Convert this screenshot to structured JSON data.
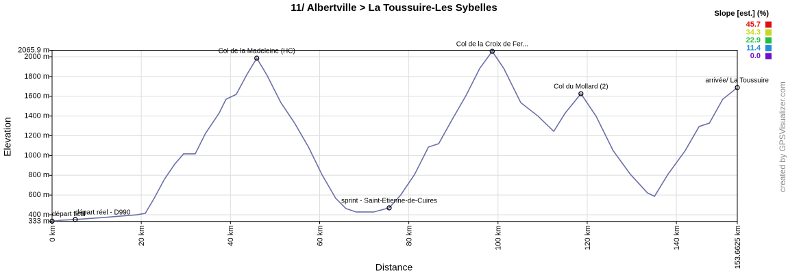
{
  "chart_data": {
    "type": "line",
    "title": "11/ Albertville > La Toussuire-Les Sybelles",
    "x_label": "Distance",
    "y_label": "Elevation",
    "credit": "created by GPSVisualizer.com",
    "x": [
      0,
      2.2,
      5.2,
      11.4,
      19,
      20.9,
      22.9,
      25.2,
      27.5,
      29.5,
      32.1,
      34.4,
      37.5,
      39,
      41.3,
      43.6,
      45.9,
      48.2,
      51.3,
      54.4,
      57.5,
      60.5,
      63.6,
      65.9,
      68.2,
      72.1,
      75.6,
      78.2,
      81.3,
      84.4,
      86.7,
      89.7,
      92.8,
      95.9,
      98.7,
      101.3,
      105.1,
      109,
      112.5,
      115.1,
      118.6,
      122,
      125.8,
      129.7,
      133.5,
      135.1,
      138.1,
      142,
      145.1,
      147.4,
      150.4,
      153.6625
    ],
    "series": [
      {
        "color": "#6a6fa8",
        "values": [
          335,
          345,
          352,
          372,
          400,
          415,
          567,
          760,
          913,
          1017,
          1017,
          1224,
          1432,
          1570,
          1619,
          1813,
          1986,
          1813,
          1536,
          1328,
          1086,
          809,
          567,
          463,
          428,
          428,
          470,
          601,
          809,
          1086,
          1120,
          1363,
          1605,
          1882,
          2055,
          1882,
          1536,
          1398,
          1245,
          1432,
          1626,
          1398,
          1051,
          809,
          622,
          587,
          809,
          1051,
          1294,
          1328,
          1570,
          1688
        ]
      }
    ],
    "xlim": [
      0,
      153.6625
    ],
    "ylim": [
      333,
      2065.9
    ],
    "xticks": [
      {
        "value": 0,
        "label": "0 km"
      },
      {
        "value": 20,
        "label": "20 km"
      },
      {
        "value": 40,
        "label": "40 km"
      },
      {
        "value": 60,
        "label": "60 km"
      },
      {
        "value": 80,
        "label": "80 km"
      },
      {
        "value": 100,
        "label": "100 km"
      },
      {
        "value": 120,
        "label": "120 km"
      },
      {
        "value": 140,
        "label": "140 km"
      },
      {
        "value": 153.6625,
        "label": "153.6625 km"
      }
    ],
    "yticks": [
      {
        "value": 333,
        "label": "333 m"
      },
      {
        "value": 400,
        "label": "400 m"
      },
      {
        "value": 600,
        "label": "600 m"
      },
      {
        "value": 800,
        "label": "800 m"
      },
      {
        "value": 1000,
        "label": "1000 m"
      },
      {
        "value": 1200,
        "label": "1200 m"
      },
      {
        "value": 1400,
        "label": "1400 m"
      },
      {
        "value": 1600,
        "label": "1600 m"
      },
      {
        "value": 1800,
        "label": "1800 m"
      },
      {
        "value": 2000,
        "label": "2000 m"
      },
      {
        "value": 2065.9,
        "label": "2065.9 m"
      }
    ],
    "grid": true,
    "annotations": [
      {
        "x": 0,
        "y": 335,
        "text": "départ fictif"
      },
      {
        "x": 5.2,
        "y": 352,
        "text": "départ réel - D990"
      },
      {
        "x": 45.9,
        "y": 1986,
        "text": "Col de la Madeleine (HC)"
      },
      {
        "x": 75.6,
        "y": 470,
        "text": "sprint - Saint-Etienne-de-Cuires"
      },
      {
        "x": 98.7,
        "y": 2055,
        "text": "Col de la Croix de Fer..."
      },
      {
        "x": 118.6,
        "y": 1626,
        "text": "Col du Mollard (2)"
      },
      {
        "x": 153.6625,
        "y": 1688,
        "text": "arrivée/ La Toussuire"
      }
    ],
    "slope_legend": {
      "title": "Slope [est.] (%)",
      "entries": [
        {
          "value": 45.7,
          "color": "#e01010"
        },
        {
          "value": 34.3,
          "color": "#c8d820"
        },
        {
          "value": 22.9,
          "color": "#20c040"
        },
        {
          "value": 11.4,
          "color": "#2090d8"
        },
        {
          "value": {
            "value": 0,
            "label": "0.0"
          },
          "color": "#7010c8"
        }
      ]
    }
  }
}
